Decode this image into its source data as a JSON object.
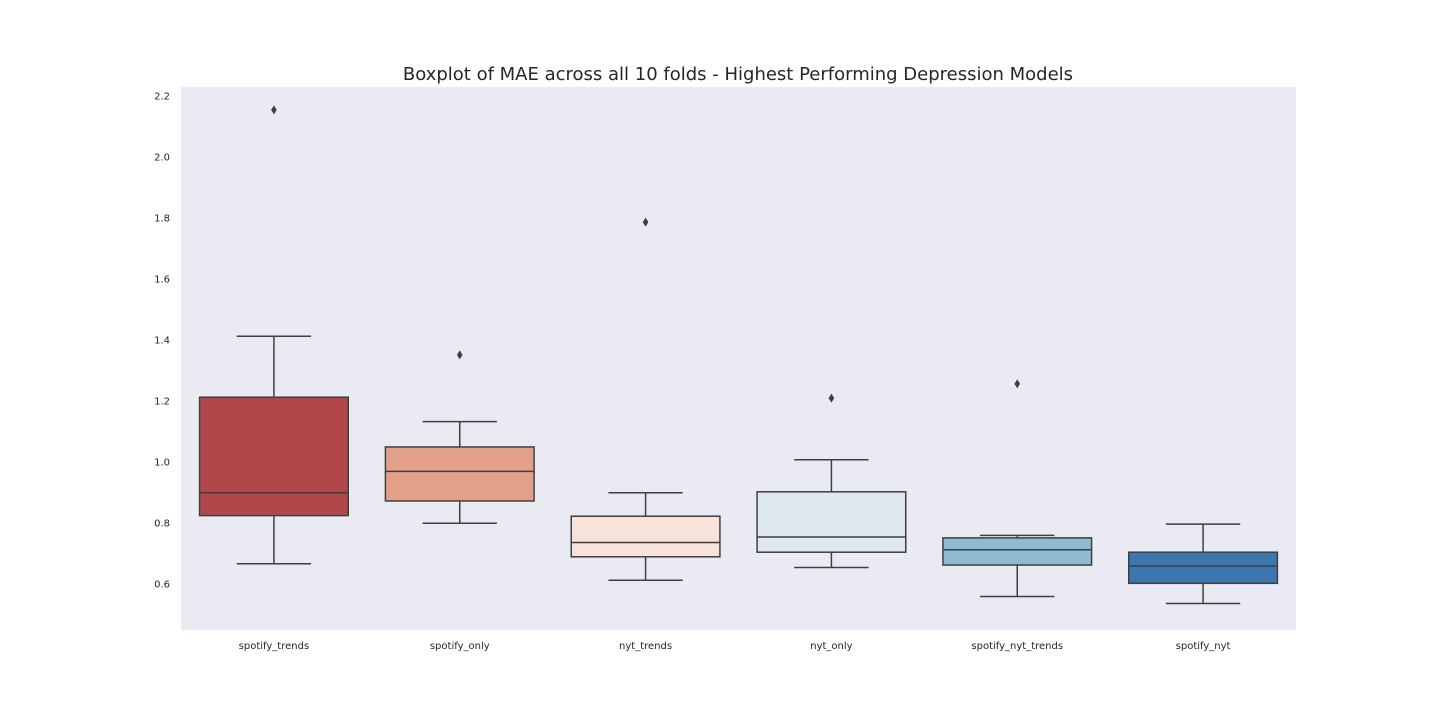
{
  "chart_data": {
    "type": "box",
    "title": "Boxplot of MAE across all 10 folds - Highest Performing Depression Models",
    "xlabel": "",
    "ylabel": "",
    "ylim": [
      0.45,
      2.23
    ],
    "yticks": [
      "0.6",
      "0.8",
      "1.0",
      "1.2",
      "1.4",
      "1.6",
      "1.8",
      "2.0",
      "2.2"
    ],
    "grid": false,
    "background": "#eaeaf2",
    "categories": [
      "spotify_trends",
      "spotify_only",
      "nyt_trends",
      "nyt_only",
      "spotify_nyt_trends",
      "spotify_nyt"
    ],
    "boxes": [
      {
        "whisker_low": 0.667,
        "q1": 0.825,
        "median": 0.9,
        "q3": 1.213,
        "whisker_high": 1.413,
        "outliers": [
          2.155
        ],
        "color": "#b2474a"
      },
      {
        "whisker_low": 0.8,
        "q1": 0.873,
        "median": 0.97,
        "q3": 1.05,
        "whisker_high": 1.133,
        "outliers": [
          1.352
        ],
        "color": "#e3a089"
      },
      {
        "whisker_low": 0.613,
        "q1": 0.69,
        "median": 0.737,
        "q3": 0.823,
        "whisker_high": 0.9,
        "outliers": [
          1.787
        ],
        "color": "#f7e3d9"
      },
      {
        "whisker_low": 0.655,
        "q1": 0.705,
        "median": 0.755,
        "q3": 0.903,
        "whisker_high": 1.008,
        "outliers": [
          1.21
        ],
        "color": "#dfe7ee"
      },
      {
        "whisker_low": 0.56,
        "q1": 0.663,
        "median": 0.713,
        "q3": 0.752,
        "whisker_high": 0.76,
        "outliers": [
          1.257
        ],
        "color": "#8ebbd3"
      },
      {
        "whisker_low": 0.537,
        "q1": 0.603,
        "median": 0.66,
        "q3": 0.705,
        "whisker_high": 0.797,
        "outliers": [],
        "color": "#3b76ae"
      }
    ]
  }
}
